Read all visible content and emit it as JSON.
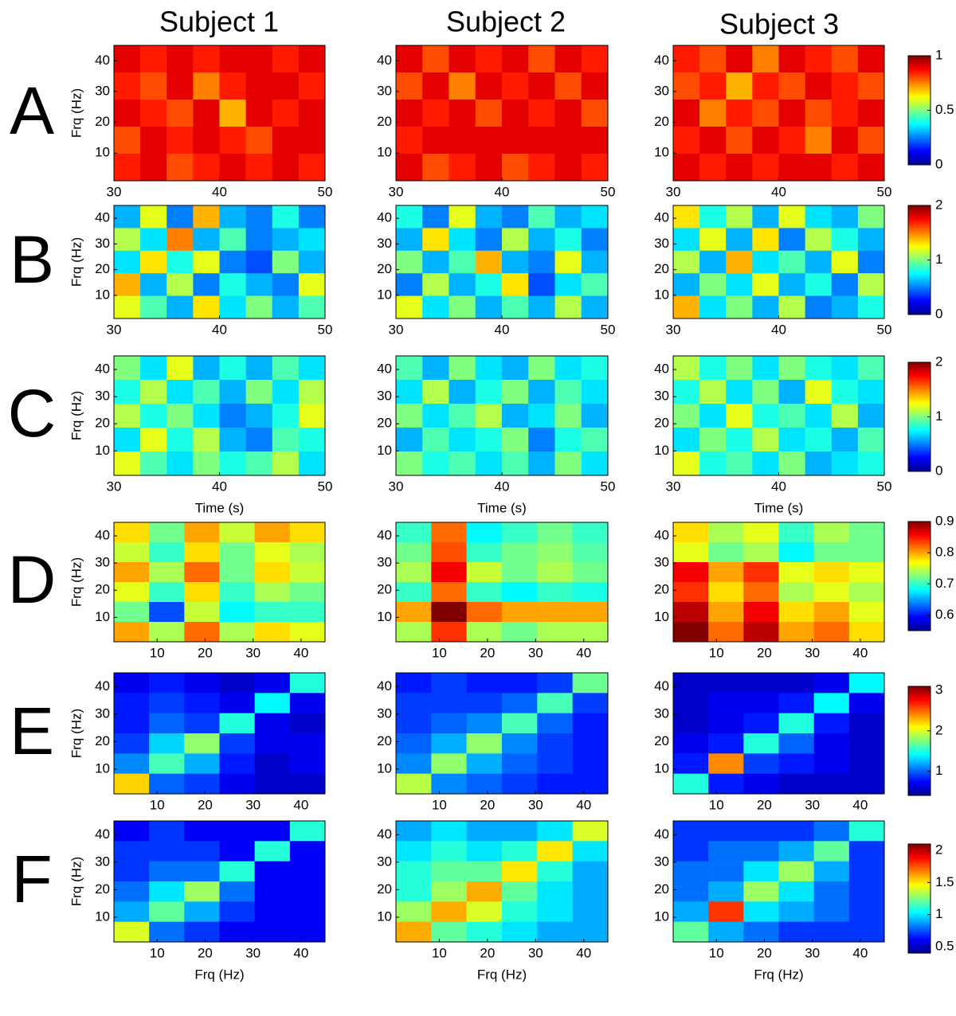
{
  "columns": [
    "Subject 1",
    "Subject 2",
    "Subject 3"
  ],
  "chart_data": [
    {
      "type": "heatmap",
      "label": "A",
      "ylabel": "Frq (Hz)",
      "xlim": [
        30,
        50
      ],
      "xticks": [
        30,
        40,
        50
      ],
      "ylim": [
        1,
        45
      ],
      "yticks": [
        10,
        20,
        30,
        40
      ],
      "zlim": [
        0,
        1
      ],
      "zticks": [
        0,
        0.5,
        1
      ],
      "panels": [
        {
          "values": [
            [
              0.9,
              0.85,
              0.9,
              0.85,
              0.9,
              0.9,
              0.85,
              0.9
            ],
            [
              0.85,
              0.8,
              0.9,
              0.75,
              0.85,
              0.9,
              0.9,
              0.85
            ],
            [
              0.9,
              0.85,
              0.8,
              0.9,
              0.7,
              0.9,
              0.85,
              0.9
            ],
            [
              0.8,
              0.9,
              0.85,
              0.9,
              0.85,
              0.8,
              0.9,
              0.9
            ],
            [
              0.85,
              0.9,
              0.8,
              0.85,
              0.9,
              0.85,
              0.9,
              0.85
            ]
          ]
        },
        {
          "values": [
            [
              0.9,
              0.8,
              0.9,
              0.85,
              0.9,
              0.8,
              0.9,
              0.85
            ],
            [
              0.8,
              0.9,
              0.75,
              0.9,
              0.85,
              0.9,
              0.8,
              0.9
            ],
            [
              0.9,
              0.85,
              0.9,
              0.8,
              0.9,
              0.85,
              0.9,
              0.8
            ],
            [
              0.85,
              0.9,
              0.9,
              0.9,
              0.9,
              0.9,
              0.9,
              0.9
            ],
            [
              0.9,
              0.8,
              0.85,
              0.9,
              0.8,
              0.85,
              0.9,
              0.85
            ]
          ]
        },
        {
          "values": [
            [
              0.85,
              0.8,
              0.9,
              0.75,
              0.9,
              0.85,
              0.8,
              0.9
            ],
            [
              0.8,
              0.85,
              0.7,
              0.85,
              0.8,
              0.9,
              0.85,
              0.8
            ],
            [
              0.9,
              0.75,
              0.85,
              0.8,
              0.9,
              0.8,
              0.85,
              0.9
            ],
            [
              0.85,
              0.9,
              0.8,
              0.9,
              0.85,
              0.75,
              0.9,
              0.8
            ],
            [
              0.9,
              0.85,
              0.9,
              0.85,
              0.9,
              0.9,
              0.85,
              0.9
            ]
          ]
        }
      ]
    },
    {
      "type": "heatmap",
      "label": "B",
      "ylabel": "Frq (Hz)",
      "xlim": [
        30,
        50
      ],
      "xticks": [
        30,
        40,
        50
      ],
      "ylim": [
        1,
        45
      ],
      "yticks": [
        10,
        20,
        30,
        40
      ],
      "zlim": [
        0,
        2
      ],
      "zticks": [
        0,
        1,
        2
      ],
      "panels": [
        {
          "values": [
            [
              0.6,
              1.2,
              0.5,
              1.4,
              0.6,
              0.5,
              0.8,
              0.5
            ],
            [
              1.1,
              0.7,
              1.5,
              0.6,
              0.9,
              0.5,
              0.6,
              0.7
            ],
            [
              0.7,
              1.3,
              0.8,
              1.2,
              0.5,
              0.4,
              1.0,
              0.6
            ],
            [
              1.4,
              0.6,
              1.1,
              0.5,
              0.8,
              0.6,
              0.5,
              1.2
            ],
            [
              1.2,
              0.9,
              0.6,
              1.3,
              0.7,
              1.0,
              0.6,
              0.9
            ]
          ]
        },
        {
          "values": [
            [
              0.8,
              0.5,
              1.2,
              0.6,
              0.5,
              0.9,
              0.6,
              0.7
            ],
            [
              0.6,
              1.3,
              0.7,
              0.5,
              1.1,
              0.6,
              0.8,
              0.5
            ],
            [
              1.0,
              0.6,
              0.9,
              1.4,
              0.6,
              0.5,
              1.2,
              0.6
            ],
            [
              0.5,
              1.1,
              0.6,
              0.8,
              1.3,
              0.4,
              0.7,
              0.9
            ],
            [
              1.2,
              0.7,
              1.0,
              0.6,
              0.9,
              0.6,
              1.1,
              0.6
            ]
          ]
        },
        {
          "values": [
            [
              1.3,
              0.8,
              1.1,
              0.6,
              1.2,
              0.7,
              0.6,
              1.0
            ],
            [
              0.7,
              1.2,
              0.6,
              1.3,
              0.5,
              1.1,
              0.8,
              0.6
            ],
            [
              1.1,
              0.6,
              1.4,
              0.7,
              0.9,
              0.6,
              1.2,
              0.5
            ],
            [
              0.6,
              1.0,
              0.7,
              1.2,
              0.6,
              0.8,
              0.5,
              1.1
            ],
            [
              1.4,
              0.7,
              1.0,
              0.6,
              1.1,
              0.5,
              0.6,
              0.8
            ]
          ]
        }
      ]
    },
    {
      "type": "heatmap",
      "label": "C",
      "ylabel": "Frq (Hz)",
      "xlabel": "Time (s)",
      "xlim": [
        30,
        50
      ],
      "xticks": [
        30,
        40,
        50
      ],
      "ylim": [
        1,
        45
      ],
      "yticks": [
        10,
        20,
        30,
        40
      ],
      "zlim": [
        0,
        2
      ],
      "zticks": [
        0,
        1,
        2
      ],
      "panels": [
        {
          "values": [
            [
              1.0,
              0.7,
              1.2,
              0.6,
              0.8,
              0.6,
              0.9,
              0.7
            ],
            [
              0.8,
              1.1,
              0.7,
              0.9,
              0.6,
              1.0,
              0.7,
              1.1
            ],
            [
              1.1,
              0.8,
              1.0,
              0.7,
              0.5,
              0.6,
              0.8,
              1.2
            ],
            [
              0.7,
              1.2,
              0.8,
              1.1,
              0.6,
              0.5,
              0.9,
              0.8
            ],
            [
              1.2,
              0.9,
              0.7,
              1.0,
              0.8,
              0.9,
              1.1,
              0.7
            ]
          ]
        },
        {
          "values": [
            [
              0.9,
              0.6,
              1.0,
              0.7,
              0.6,
              1.0,
              0.7,
              0.8
            ],
            [
              0.7,
              1.1,
              0.6,
              0.8,
              1.0,
              0.6,
              0.9,
              0.7
            ],
            [
              1.0,
              0.7,
              0.9,
              1.1,
              0.6,
              0.7,
              1.0,
              0.6
            ],
            [
              0.6,
              0.9,
              0.7,
              0.8,
              1.0,
              0.5,
              0.8,
              0.9
            ],
            [
              1.0,
              0.8,
              0.9,
              0.7,
              0.9,
              0.6,
              1.0,
              0.7
            ]
          ]
        },
        {
          "values": [
            [
              1.1,
              0.8,
              1.0,
              0.7,
              1.0,
              0.8,
              0.7,
              0.9
            ],
            [
              0.8,
              1.1,
              0.7,
              1.0,
              0.6,
              1.2,
              0.8,
              0.7
            ],
            [
              1.0,
              0.7,
              1.2,
              0.8,
              0.9,
              0.7,
              1.1,
              0.6
            ],
            [
              0.7,
              1.0,
              0.8,
              1.1,
              0.7,
              0.8,
              0.6,
              0.9
            ],
            [
              1.2,
              0.8,
              0.9,
              0.7,
              1.0,
              0.6,
              0.7,
              0.8
            ]
          ]
        }
      ]
    },
    {
      "type": "heatmap",
      "label": "D",
      "ylabel": "Frq (Hz)",
      "xlim": [
        1,
        45
      ],
      "xticks": [
        10,
        20,
        30,
        40
      ],
      "ylim": [
        1,
        45
      ],
      "yticks": [
        10,
        20,
        30,
        40
      ],
      "zlim": [
        0.55,
        0.9
      ],
      "zticks": [
        0.6,
        0.7,
        0.8,
        0.9
      ],
      "panels": [
        {
          "values": [
            [
              0.78,
              0.72,
              0.8,
              0.75,
              0.8,
              0.78
            ],
            [
              0.75,
              0.7,
              0.78,
              0.72,
              0.76,
              0.74
            ],
            [
              0.8,
              0.74,
              0.82,
              0.72,
              0.78,
              0.75
            ],
            [
              0.76,
              0.7,
              0.78,
              0.7,
              0.74,
              0.72
            ],
            [
              0.72,
              0.62,
              0.75,
              0.68,
              0.7,
              0.7
            ],
            [
              0.8,
              0.74,
              0.82,
              0.74,
              0.78,
              0.76
            ]
          ]
        },
        {
          "values": [
            [
              0.7,
              0.82,
              0.68,
              0.7,
              0.72,
              0.7
            ],
            [
              0.72,
              0.83,
              0.7,
              0.72,
              0.73,
              0.71
            ],
            [
              0.74,
              0.86,
              0.75,
              0.72,
              0.74,
              0.72
            ],
            [
              0.7,
              0.82,
              0.7,
              0.68,
              0.7,
              0.69
            ],
            [
              0.8,
              0.9,
              0.82,
              0.8,
              0.8,
              0.8
            ],
            [
              0.74,
              0.84,
              0.74,
              0.72,
              0.74,
              0.74
            ]
          ]
        },
        {
          "values": [
            [
              0.78,
              0.74,
              0.76,
              0.7,
              0.74,
              0.72
            ],
            [
              0.76,
              0.72,
              0.74,
              0.68,
              0.72,
              0.72
            ],
            [
              0.86,
              0.8,
              0.84,
              0.76,
              0.78,
              0.76
            ],
            [
              0.84,
              0.78,
              0.82,
              0.74,
              0.76,
              0.74
            ],
            [
              0.88,
              0.8,
              0.86,
              0.78,
              0.8,
              0.76
            ],
            [
              0.9,
              0.82,
              0.88,
              0.8,
              0.82,
              0.78
            ]
          ]
        }
      ]
    },
    {
      "type": "heatmap",
      "label": "E",
      "ylabel": "Frq (Hz)",
      "xlim": [
        1,
        45
      ],
      "xticks": [
        10,
        20,
        30,
        40
      ],
      "ylim": [
        1,
        45
      ],
      "yticks": [
        10,
        20,
        30,
        40
      ],
      "zlim": [
        0.4,
        3.1
      ],
      "zticks": [
        1,
        2,
        3
      ],
      "panels": [
        {
          "values": [
            [
              0.7,
              0.8,
              0.7,
              0.6,
              0.7,
              1.5
            ],
            [
              0.8,
              0.9,
              0.8,
              0.7,
              1.4,
              0.7
            ],
            [
              0.8,
              1.0,
              0.9,
              1.5,
              0.7,
              0.6
            ],
            [
              0.9,
              1.3,
              1.8,
              0.9,
              0.7,
              0.7
            ],
            [
              1.1,
              1.6,
              1.2,
              0.8,
              0.6,
              0.7
            ],
            [
              2.2,
              1.0,
              0.9,
              0.7,
              0.6,
              0.6
            ]
          ]
        },
        {
          "values": [
            [
              0.8,
              0.9,
              0.8,
              0.8,
              0.9,
              1.7
            ],
            [
              0.9,
              0.9,
              0.9,
              1.0,
              1.6,
              0.9
            ],
            [
              0.9,
              1.0,
              1.1,
              1.6,
              1.0,
              0.8
            ],
            [
              1.0,
              1.2,
              1.8,
              1.1,
              0.9,
              0.8
            ],
            [
              1.1,
              1.8,
              1.2,
              1.0,
              0.9,
              0.8
            ],
            [
              1.9,
              1.1,
              1.0,
              0.9,
              0.8,
              0.8
            ]
          ]
        },
        {
          "values": [
            [
              0.6,
              0.6,
              0.6,
              0.6,
              0.7,
              1.4
            ],
            [
              0.6,
              0.7,
              0.7,
              0.8,
              1.4,
              0.7
            ],
            [
              0.6,
              0.7,
              0.8,
              1.5,
              0.8,
              0.6
            ],
            [
              0.7,
              0.8,
              1.5,
              1.0,
              0.7,
              0.6
            ],
            [
              0.8,
              2.4,
              0.9,
              0.8,
              0.7,
              0.6
            ],
            [
              1.5,
              0.8,
              0.7,
              0.6,
              0.6,
              0.6
            ]
          ]
        }
      ]
    },
    {
      "type": "heatmap",
      "label": "F",
      "ylabel": "Frq (Hz)",
      "xlabel": "Frq (Hz)",
      "xlim": [
        1,
        45
      ],
      "xticks": [
        10,
        20,
        30,
        40
      ],
      "ylim": [
        1,
        45
      ],
      "yticks": [
        10,
        20,
        30,
        40
      ],
      "zlim": [
        0.4,
        2.1
      ],
      "zticks": [
        0.5,
        1,
        1.5,
        2
      ],
      "panels": [
        {
          "values": [
            [
              0.6,
              0.7,
              0.6,
              0.6,
              0.6,
              1.1
            ],
            [
              0.7,
              0.7,
              0.7,
              0.6,
              1.1,
              0.6
            ],
            [
              0.7,
              0.8,
              0.8,
              1.1,
              0.6,
              0.6
            ],
            [
              0.8,
              1.0,
              1.3,
              0.8,
              0.6,
              0.6
            ],
            [
              0.9,
              1.2,
              0.9,
              0.7,
              0.6,
              0.6
            ],
            [
              1.4,
              0.8,
              0.7,
              0.6,
              0.6,
              0.6
            ]
          ]
        },
        {
          "values": [
            [
              0.9,
              1.0,
              0.9,
              0.9,
              1.0,
              1.4
            ],
            [
              1.0,
              1.1,
              1.0,
              1.1,
              1.5,
              1.0
            ],
            [
              1.1,
              1.2,
              1.2,
              1.5,
              1.1,
              0.9
            ],
            [
              1.1,
              1.3,
              1.6,
              1.2,
              1.0,
              0.9
            ],
            [
              1.3,
              1.6,
              1.4,
              1.1,
              1.0,
              0.9
            ],
            [
              1.6,
              1.2,
              1.1,
              1.0,
              0.9,
              0.9
            ]
          ]
        },
        {
          "values": [
            [
              0.7,
              0.7,
              0.7,
              0.7,
              0.8,
              1.1
            ],
            [
              0.7,
              0.8,
              0.8,
              0.9,
              1.2,
              0.7
            ],
            [
              0.8,
              0.8,
              1.0,
              1.3,
              0.9,
              0.7
            ],
            [
              0.8,
              0.9,
              1.3,
              1.0,
              0.8,
              0.7
            ],
            [
              0.9,
              1.8,
              1.0,
              0.9,
              0.8,
              0.7
            ],
            [
              1.2,
              0.9,
              0.8,
              0.7,
              0.7,
              0.7
            ]
          ]
        }
      ]
    }
  ]
}
